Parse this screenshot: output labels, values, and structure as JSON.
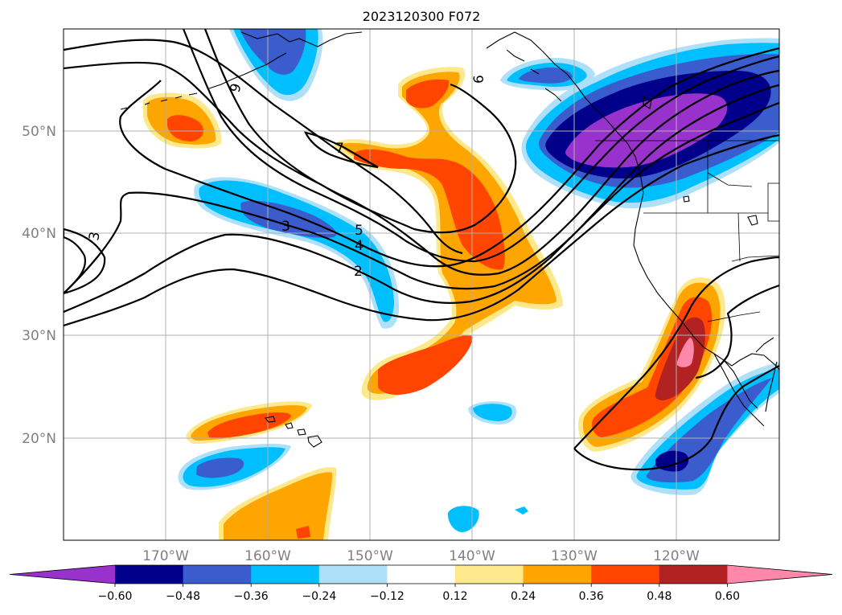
{
  "map": {
    "title": "2023120300 F072",
    "lat_labels": [
      "50°N",
      "40°N",
      "30°N",
      "20°N"
    ],
    "lon_labels": [
      "170°W",
      "160°W",
      "150°W",
      "140°W",
      "130°W",
      "120°W"
    ],
    "contour_labels": [
      "9",
      "7",
      "6",
      "5",
      "4",
      "3",
      "3",
      "2"
    ]
  },
  "colorbar": {
    "ticks": [
      "−0.60",
      "−0.48",
      "−0.36",
      "−0.24",
      "−0.12",
      "0.12",
      "0.24",
      "0.36",
      "0.48",
      "0.60"
    ],
    "colors": [
      "#9932cc",
      "#00008b",
      "#3a5ccc",
      "#00bfff",
      "#aee1f9",
      "#ffffff",
      "#fde98c",
      "#ffa500",
      "#ff4500",
      "#b22222",
      "#ff88aa"
    ]
  }
}
